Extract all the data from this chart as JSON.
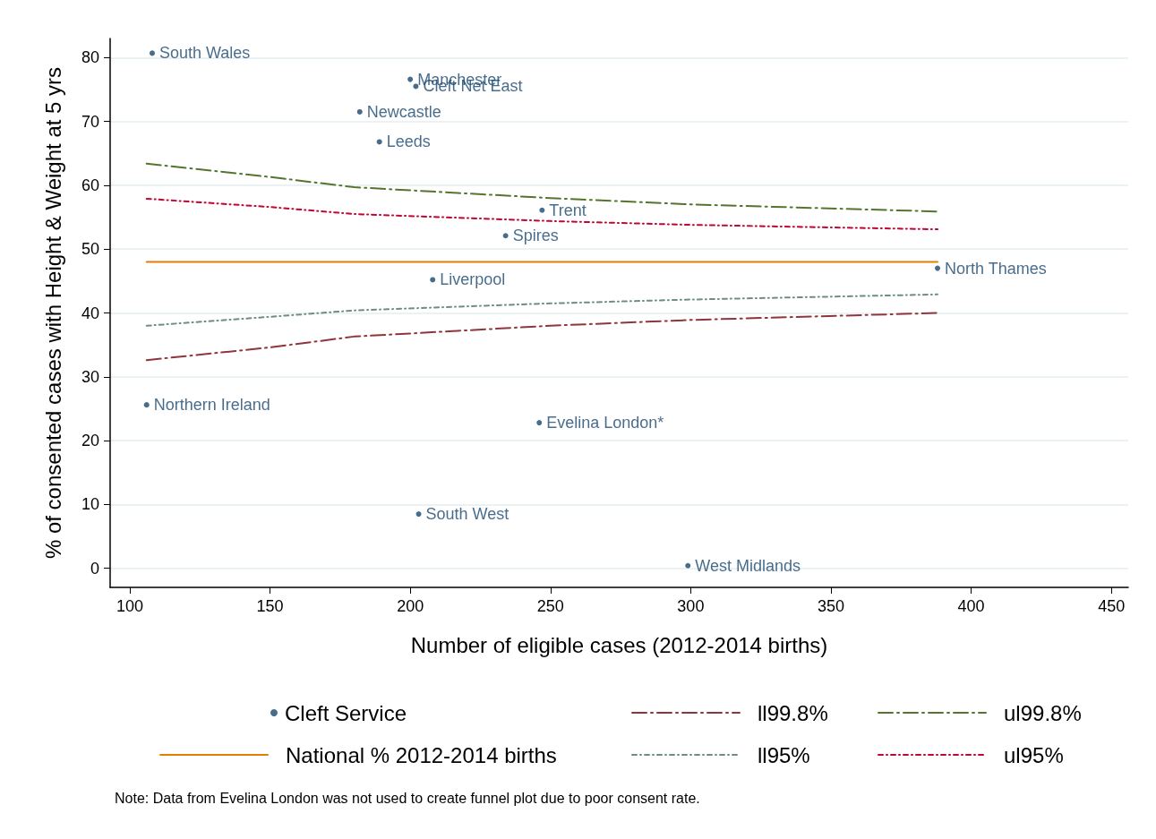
{
  "chart_data": {
    "type": "scatter",
    "xlabel": "Number of eligible cases (2012-2014 births)",
    "ylabel": "% of consented cases with Height & Weight at 5 yrs",
    "xlim": [
      93,
      456
    ],
    "xticks": [
      100,
      150,
      200,
      250,
      300,
      350,
      400,
      450
    ],
    "ylim": [
      -3,
      83
    ],
    "yticks": [
      0,
      10,
      20,
      30,
      40,
      50,
      60,
      70,
      80
    ],
    "grid": "y",
    "legend": "bottom",
    "marker": "circle",
    "series": [
      {
        "name": "Cleft Service",
        "color": "#1a476f",
        "x": [
          108,
          200,
          202,
          182,
          189,
          247,
          234,
          388,
          208,
          106,
          246,
          203,
          299
        ],
        "values": [
          80.7,
          76.6,
          75.5,
          71.5,
          66.8,
          56.1,
          52.1,
          47.0,
          45.2,
          25.6,
          22.8,
          8.5,
          0.4
        ]
      },
      {
        "name": "National % 2012-2014 births",
        "type": "line",
        "color": "#e37e00",
        "marker": "none",
        "line_style": "solid",
        "x": [
          106,
          388
        ],
        "values": [
          48.0,
          48.0
        ]
      },
      {
        "name": "ll99.8%",
        "type": "line",
        "color": "#90353b",
        "marker": "none",
        "line_style": "dashed",
        "x": [
          106,
          150,
          180,
          250,
          300,
          388
        ],
        "values": [
          32.6,
          34.6,
          36.3,
          38.0,
          38.9,
          40.0
        ]
      },
      {
        "name": "ll95%",
        "type": "line",
        "color": "#6e8e84",
        "marker": "none",
        "line_style": "dotted",
        "x": [
          106,
          150,
          180,
          250,
          300,
          388
        ],
        "values": [
          38.0,
          39.4,
          40.4,
          41.5,
          42.1,
          42.9
        ]
      },
      {
        "name": "ul99.8%",
        "type": "line",
        "color": "#55752f",
        "marker": "none",
        "line_style": "dashed",
        "x": [
          106,
          150,
          180,
          250,
          300,
          388
        ],
        "values": [
          63.4,
          61.3,
          59.7,
          58.0,
          57.0,
          55.9
        ]
      },
      {
        "name": "ul95%",
        "type": "line",
        "color": "#c10534",
        "marker": "none",
        "line_style": "dotted",
        "x": [
          106,
          150,
          180,
          250,
          300,
          388
        ],
        "values": [
          57.9,
          56.6,
          55.5,
          54.4,
          53.8,
          53.1
        ]
      }
    ],
    "annotations": [
      {
        "text": "South Wales",
        "x": 108,
        "y": 80.7
      },
      {
        "text": "Manchester",
        "x": 200,
        "y": 76.6
      },
      {
        "text": "Cleft Net East",
        "x": 202,
        "y": 75.5
      },
      {
        "text": "Newcastle",
        "x": 182,
        "y": 71.5
      },
      {
        "text": "Leeds",
        "x": 189,
        "y": 66.8
      },
      {
        "text": "Trent",
        "x": 247,
        "y": 56.1
      },
      {
        "text": "Spires",
        "x": 234,
        "y": 52.1
      },
      {
        "text": "North Thames",
        "x": 388,
        "y": 47.0
      },
      {
        "text": "Liverpool",
        "x": 208,
        "y": 45.2
      },
      {
        "text": "Northern Ireland",
        "x": 106,
        "y": 25.6
      },
      {
        "text": "Evelina London*",
        "x": 246,
        "y": 22.8
      },
      {
        "text": "South West",
        "x": 203,
        "y": 8.5
      },
      {
        "text": "West Midlands",
        "x": 299,
        "y": 0.4
      },
      "Note: Data from Evelina London was not used to create funnel plot due to poor consent rate."
    ]
  }
}
